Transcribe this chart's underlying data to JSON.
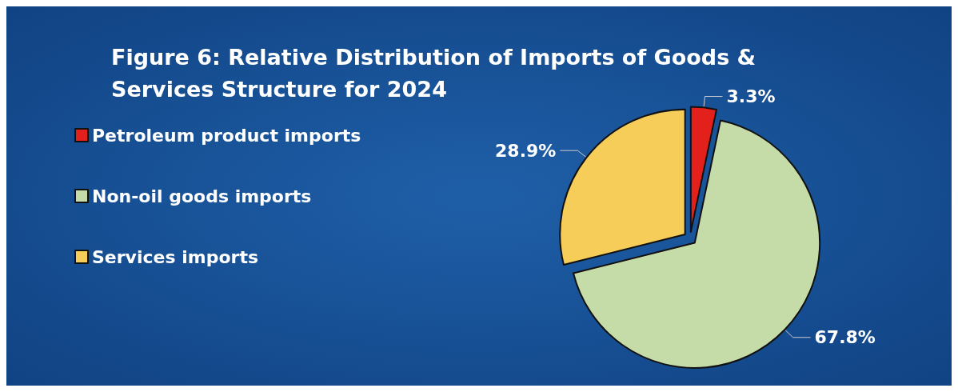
{
  "chart_data": {
    "type": "pie",
    "title": "Figure 6: Relative Distribution of Imports of Goods & Services Structure for 2024",
    "categories": [
      "Petroleum product imports",
      "Non-oil goods imports",
      "Services imports"
    ],
    "values": [
      3.3,
      67.8,
      28.9
    ],
    "colors": [
      "#e3201b",
      "#c5dba8",
      "#f6cd58"
    ],
    "value_labels": [
      "3.3%",
      "67.8%",
      "28.9%"
    ],
    "legend": "left"
  }
}
